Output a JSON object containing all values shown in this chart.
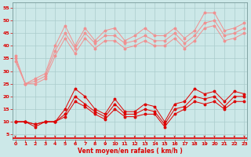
{
  "xlabel": "Vent moyen/en rafales ( km/h )",
  "background_color": "#cce8e8",
  "grid_color": "#aacccc",
  "x_ticks": [
    0,
    1,
    2,
    3,
    4,
    5,
    6,
    7,
    8,
    9,
    10,
    11,
    12,
    13,
    14,
    15,
    16,
    17,
    18,
    19,
    20,
    21,
    22,
    23
  ],
  "y_ticks": [
    5,
    10,
    15,
    20,
    25,
    30,
    35,
    40,
    45,
    50,
    55
  ],
  "ylim": [
    3,
    57
  ],
  "xlim": [
    -0.3,
    23.3
  ],
  "series_light": [
    [
      36,
      25,
      27,
      29,
      40,
      48,
      40,
      47,
      42,
      46,
      47,
      42,
      44,
      47,
      44,
      44,
      47,
      43,
      46,
      53,
      53,
      46,
      47,
      49
    ],
    [
      35,
      25,
      26,
      28,
      38,
      45,
      39,
      45,
      41,
      44,
      44,
      41,
      42,
      44,
      42,
      42,
      45,
      41,
      44,
      49,
      50,
      44,
      45,
      47
    ],
    [
      34,
      25,
      25,
      27,
      36,
      43,
      37,
      43,
      39,
      42,
      42,
      39,
      40,
      42,
      40,
      40,
      43,
      39,
      42,
      47,
      48,
      42,
      43,
      45
    ]
  ],
  "series_dark": [
    [
      10,
      10,
      8,
      10,
      10,
      15,
      23,
      20,
      15,
      13,
      19,
      14,
      14,
      17,
      16,
      10,
      17,
      18,
      23,
      21,
      22,
      18,
      22,
      21
    ],
    [
      10,
      10,
      9,
      10,
      10,
      13,
      20,
      17,
      14,
      12,
      17,
      13,
      13,
      15,
      14,
      9,
      15,
      16,
      20,
      19,
      20,
      16,
      20,
      20
    ],
    [
      10,
      10,
      9,
      10,
      10,
      12,
      18,
      16,
      13,
      11,
      15,
      12,
      12,
      13,
      13,
      8,
      13,
      15,
      18,
      17,
      18,
      15,
      18,
      18
    ]
  ],
  "light_color": "#f09090",
  "dark_color": "#dd0000",
  "markersize": 1.8,
  "linewidth": 0.7,
  "tick_labelsize": 4.5,
  "xlabel_fontsize": 5.5
}
